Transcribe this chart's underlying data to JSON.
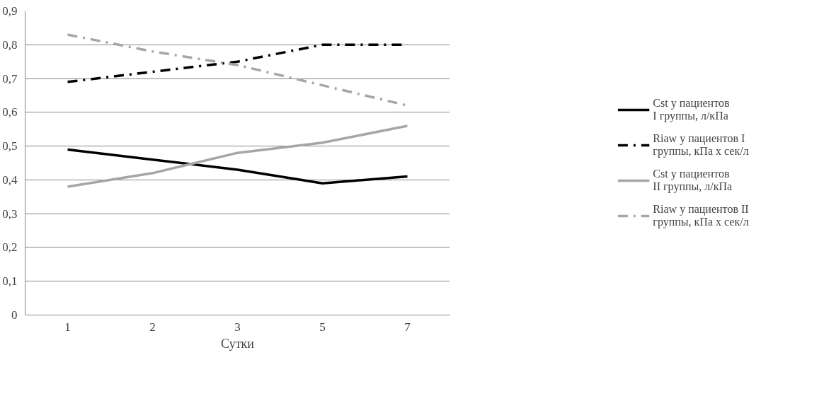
{
  "chart_data": {
    "type": "line",
    "xlabel": "Сутки",
    "categories": [
      "1",
      "2",
      "3",
      "5",
      "7"
    ],
    "ylim": [
      0,
      0.9
    ],
    "yticks": [
      {
        "value": 0,
        "label": "0"
      },
      {
        "value": 0.1,
        "label": "0,1"
      },
      {
        "value": 0.2,
        "label": "0,2"
      },
      {
        "value": 0.3,
        "label": "0,3"
      },
      {
        "value": 0.4,
        "label": "0,4"
      },
      {
        "value": 0.5,
        "label": "0,5"
      },
      {
        "value": 0.6,
        "label": "0,6"
      },
      {
        "value": 0.7,
        "label": "0,7"
      },
      {
        "value": 0.8,
        "label": "0,8"
      },
      {
        "value": 0.9,
        "label": "0,9"
      }
    ],
    "grid": "y",
    "legend": "right",
    "marker": "none",
    "series": [
      {
        "name": "Cst у пациентов I группы, л/кПа",
        "color": "#000000",
        "line_style": "solid",
        "values": [
          0.49,
          0.46,
          0.43,
          0.39,
          0.41
        ]
      },
      {
        "name": "Riaw у пациентов I группы, кПа х сек/л",
        "color": "#000000",
        "line_style": "dashed",
        "values": [
          0.69,
          0.72,
          0.75,
          0.8,
          0.8
        ]
      },
      {
        "name": "Cst у пациентов II группы, л/кПа",
        "color": "#a6a6a6",
        "line_style": "solid",
        "values": [
          0.38,
          0.42,
          0.48,
          0.51,
          0.56
        ]
      },
      {
        "name": "Riaw у пациентов II группы, кПа х сек/л",
        "color": "#a6a6a6",
        "line_style": "dashed",
        "values": [
          0.83,
          0.78,
          0.74,
          0.68,
          0.62
        ]
      }
    ]
  }
}
